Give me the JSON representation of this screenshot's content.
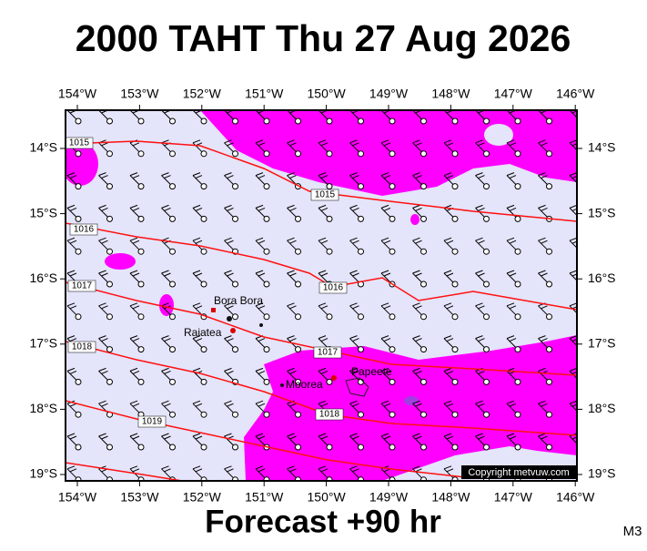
{
  "header": {
    "title": "2000 TAHT Thu 27 Aug 2026"
  },
  "map": {
    "lon_ticks": [
      "154°W",
      "153°W",
      "152°W",
      "151°W",
      "150°W",
      "149°W",
      "148°W",
      "147°W",
      "146°W"
    ],
    "lat_ticks": [
      "14°S",
      "15°S",
      "16°S",
      "17°S",
      "18°S",
      "19°S"
    ],
    "isobar_labels": [
      1015,
      1015,
      1016,
      1016,
      1017,
      1017,
      1018,
      1018,
      1019
    ],
    "places": [
      "Bora Bora",
      "Raiatea",
      "Moorea",
      "Papeete"
    ],
    "copyright": "Copyright metvuw.com"
  },
  "footer": {
    "caption": "Forecast +90 hr",
    "code": "M3"
  }
}
